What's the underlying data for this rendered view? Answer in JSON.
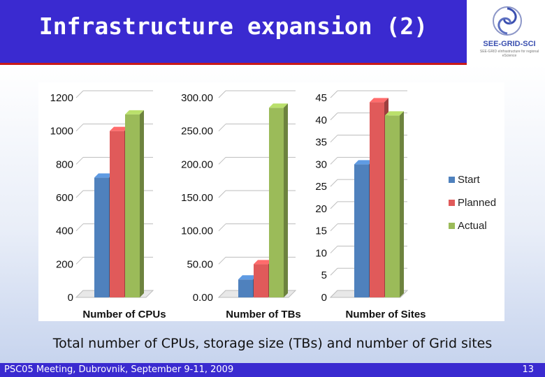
{
  "header": {
    "title": "Infrastructure expansion (2)"
  },
  "logo": {
    "name": "SEE-GRID-SCI",
    "tagline": "SEE-GRID eInfrastructure for regional eScience"
  },
  "caption": "Total number of CPUs, storage size (TBs) and number of Grid sites",
  "footer": {
    "text": "PSC05 Meeting, Dubrovnik, September 9-11, 2009",
    "page": "13"
  },
  "colors": {
    "start": "#4f81bd",
    "planned": "#e05a5a",
    "actual": "#9bbb59",
    "header": "#3a2ad0"
  },
  "chart_data": [
    {
      "type": "bar",
      "categories": [
        "Number of CPUs"
      ],
      "ylim": [
        0,
        1200
      ],
      "yticks": [
        "0",
        "200",
        "400",
        "600",
        "800",
        "1000",
        "1200"
      ],
      "series": [
        {
          "name": "Start",
          "values": [
            720
          ]
        },
        {
          "name": "Planned",
          "values": [
            1000
          ]
        },
        {
          "name": "Actual",
          "values": [
            1100
          ]
        }
      ]
    },
    {
      "type": "bar",
      "categories": [
        "Number of TBs"
      ],
      "ylim": [
        0,
        300
      ],
      "yticks": [
        "0.00",
        "50.00",
        "100.00",
        "150.00",
        "200.00",
        "250.00",
        "300.00"
      ],
      "series": [
        {
          "name": "Start",
          "values": [
            27
          ]
        },
        {
          "name": "Planned",
          "values": [
            50
          ]
        },
        {
          "name": "Actual",
          "values": [
            285
          ]
        }
      ]
    },
    {
      "type": "bar",
      "categories": [
        "Number of Sites"
      ],
      "ylim": [
        0,
        45
      ],
      "yticks": [
        "0",
        "5",
        "10",
        "15",
        "20",
        "25",
        "30",
        "35",
        "40",
        "45"
      ],
      "series": [
        {
          "name": "Start",
          "values": [
            30
          ]
        },
        {
          "name": "Planned",
          "values": [
            44
          ]
        },
        {
          "name": "Actual",
          "values": [
            41
          ]
        }
      ]
    }
  ],
  "legend": {
    "position": "right",
    "items": [
      "Start",
      "Planned",
      "Actual"
    ]
  }
}
